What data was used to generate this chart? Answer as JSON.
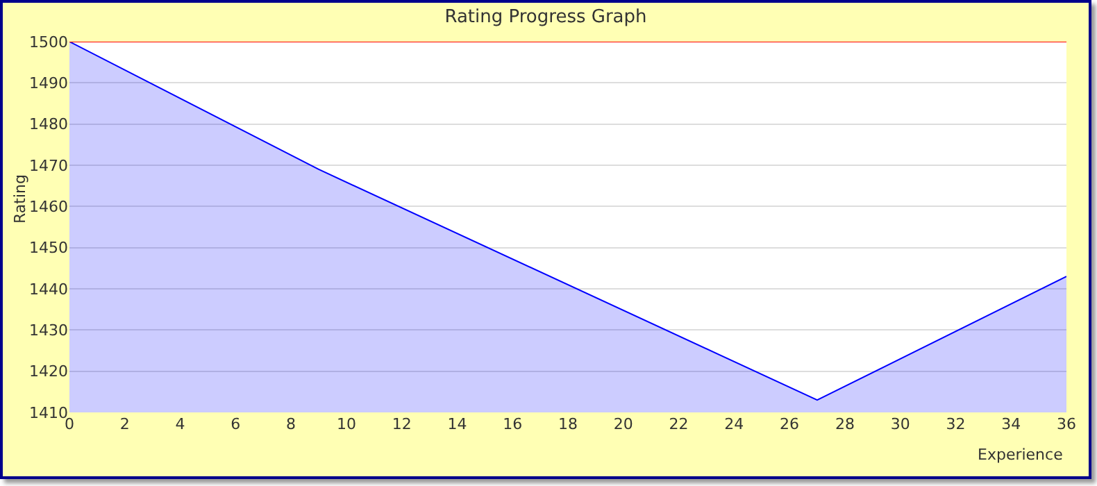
{
  "chart_data": {
    "type": "area",
    "title": "Rating Progress Graph",
    "xlabel": "Experience",
    "ylabel": "Rating",
    "x": [
      0,
      9,
      27,
      36
    ],
    "series": [
      {
        "color": "#0000ff",
        "values": [
          1500,
          1469,
          1413,
          1443
        ]
      }
    ],
    "xlim": [
      0,
      36
    ],
    "xticks": [
      0,
      2,
      4,
      6,
      8,
      10,
      12,
      14,
      16,
      18,
      20,
      22,
      24,
      26,
      28,
      30,
      32,
      34,
      36
    ],
    "ylim": [
      1410,
      1500
    ],
    "yticks": [
      1410,
      1420,
      1430,
      1440,
      1450,
      1460,
      1470,
      1480,
      1490,
      1500
    ],
    "ref_lines": [
      {
        "axis": "y",
        "value": 1500,
        "color": "#ff0000"
      }
    ],
    "grid": "y",
    "legend": false,
    "marker": "none",
    "line_style": "solid"
  }
}
